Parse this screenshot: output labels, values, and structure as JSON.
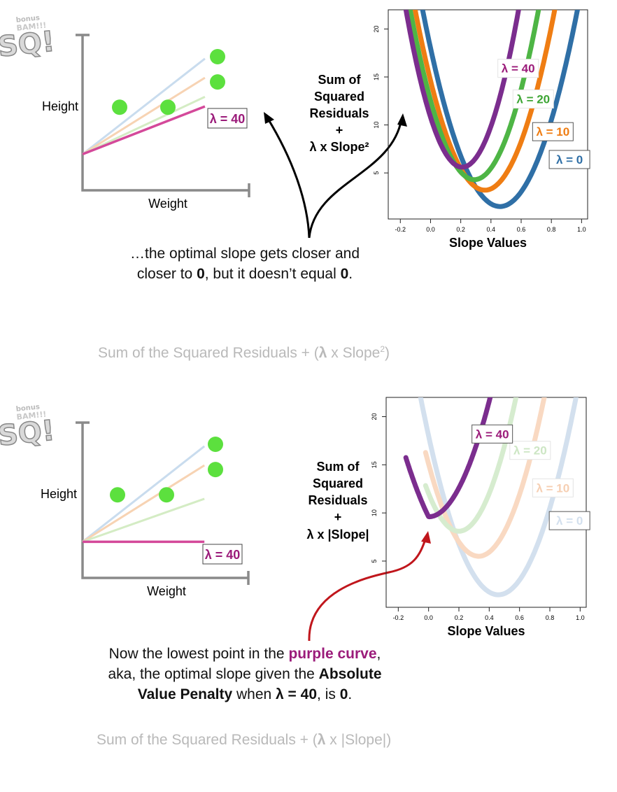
{
  "panels": [
    {
      "id": "top",
      "logo": {
        "top": "bonus",
        "mid": "BAM!!!",
        "big": "SQ!"
      },
      "scatter": {
        "ylabel": "Height",
        "xlabel": "Weight",
        "lambda_label": "λ = 40",
        "colors": {
          "points": "#5ce03e",
          "axes": "#8a8a8a",
          "lambda40": "#d4499a"
        }
      },
      "side_label_lines": [
        "Sum of",
        "Squared",
        "Residuals",
        "+",
        "λ x Slope²"
      ],
      "caption_lines": [
        [
          "…the optimal slope gets closer and"
        ],
        [
          "closer to ",
          "0",
          ", but it doesn’t equal ",
          "0",
          "."
        ]
      ],
      "footer": {
        "prefix": "Sum of the Squared Residuals + (",
        "lambda": "λ",
        "mid": " x Slope",
        "sup": "2",
        "suffix": ")"
      }
    },
    {
      "id": "bottom",
      "logo": {
        "top": "bonus",
        "mid": "BAM!!!",
        "big": "SQ!"
      },
      "scatter": {
        "ylabel": "Height",
        "xlabel": "Weight",
        "lambda_label": "λ = 40",
        "colors": {
          "points": "#5ce03e",
          "axes": "#8a8a8a",
          "lambda40": "#d4499a"
        }
      },
      "side_label_lines": [
        "Sum of",
        "Squared",
        "Residuals",
        "+",
        "λ x |Slope|"
      ],
      "caption_lines": [
        [
          "Now the lowest point in the ",
          "purple curve",
          ","
        ],
        [
          "aka, the optimal slope given the ",
          "Absolute"
        ],
        [
          "Value Penalty",
          " when ",
          "λ = 40",
          ", is ",
          "0",
          "."
        ]
      ],
      "footer": {
        "prefix": "Sum of the Squared Residuals + (",
        "lambda": "λ",
        "mid": " x |Slope|",
        "sup": "",
        "suffix": ")"
      }
    }
  ],
  "chart_data": [
    {
      "type": "scatter",
      "title": "",
      "xlabel": "Weight",
      "ylabel": "Height",
      "points": [
        {
          "x": 1,
          "y": 2.3
        },
        {
          "x": 2,
          "y": 2.3
        },
        {
          "x": 3,
          "y": 3.7
        },
        {
          "x": 3,
          "y": 3.0
        }
      ],
      "fit_lines": [
        {
          "name": "",
          "color": "#c9dcee",
          "intercept": 1,
          "slope": 1.0
        },
        {
          "name": "",
          "color": "#f7d3b3",
          "intercept": 1,
          "slope": 0.8
        },
        {
          "name": "",
          "color": "#d4ecc4",
          "intercept": 1,
          "slope": 0.6
        },
        {
          "name": "λ = 40",
          "color": "#d4499a",
          "intercept": 1,
          "slope": 0.5
        }
      ],
      "xlim": [
        0,
        3.6
      ],
      "ylim": [
        0,
        4.3
      ],
      "grid": false
    },
    {
      "type": "line",
      "title": "",
      "xlabel": "Slope Values",
      "ylabel": "",
      "xlim": [
        -0.28,
        1.04
      ],
      "ylim": [
        0.2,
        22
      ],
      "x_ticks": [
        -0.2,
        0.0,
        0.2,
        0.4,
        0.6,
        0.8,
        1.0
      ],
      "x_tick_labels": [
        "-0.2",
        "0.0",
        "0.2",
        "0.4",
        "0.6",
        "0.8",
        "1.0"
      ],
      "y_ticks": [
        5,
        10,
        15,
        20
      ],
      "y_tick_labels": [
        "5",
        "10",
        "15",
        "20"
      ],
      "grid": false,
      "series": [
        {
          "name": "λ = 0",
          "color": "#2f6fa6",
          "label_color": "#2f6fa6",
          "label_x": 0.92,
          "label_y": 6.4,
          "min_x": 0.46,
          "min_y": 1.5,
          "curv": 78,
          "kind": "sq",
          "x_start": -0.25,
          "x_end": 1.0
        },
        {
          "name": "λ = 10",
          "color": "#ef7d13",
          "label_color": "#ef7d13",
          "label_x": 0.81,
          "label_y": 9.3,
          "min_x": 0.36,
          "min_y": 3.2,
          "curv": 88,
          "kind": "sq",
          "x_start": -0.25,
          "x_end": 1.0
        },
        {
          "name": "λ = 20",
          "color": "#4eb545",
          "label_color": "#3da534",
          "label_x": 0.68,
          "label_y": 12.7,
          "min_x": 0.29,
          "min_y": 4.3,
          "curv": 98,
          "kind": "sq",
          "x_start": -0.25,
          "x_end": 1.0
        },
        {
          "name": "λ = 40",
          "color": "#7b2d8e",
          "label_color": "#9b1b7a",
          "label_x": 0.58,
          "label_y": 15.9,
          "min_x": 0.21,
          "min_y": 5.6,
          "curv": 118,
          "kind": "sq",
          "x_start": -0.25,
          "x_end": 1.0
        }
      ]
    },
    {
      "type": "scatter",
      "title": "",
      "xlabel": "Weight",
      "ylabel": "Height",
      "points": [
        {
          "x": 1,
          "y": 2.3
        },
        {
          "x": 2,
          "y": 2.3
        },
        {
          "x": 3,
          "y": 3.7
        },
        {
          "x": 3,
          "y": 3.0
        }
      ],
      "fit_lines": [
        {
          "name": "",
          "color": "#c9dcee",
          "intercept": 1,
          "slope": 1.0
        },
        {
          "name": "",
          "color": "#f7d3b3",
          "intercept": 1,
          "slope": 0.8
        },
        {
          "name": "",
          "color": "#d4ecc4",
          "intercept": 1,
          "slope": 0.45
        },
        {
          "name": "λ = 40",
          "color": "#d4499a",
          "intercept": 1,
          "slope": 0.0
        }
      ],
      "xlim": [
        0,
        3.6
      ],
      "ylim": [
        0,
        4.3
      ],
      "grid": false
    },
    {
      "type": "line",
      "title": "",
      "xlabel": "Slope Values",
      "ylabel": "",
      "xlim": [
        -0.28,
        1.04
      ],
      "ylim": [
        0.2,
        22
      ],
      "x_ticks": [
        -0.2,
        0.0,
        0.2,
        0.4,
        0.6,
        0.8,
        1.0
      ],
      "x_tick_labels": [
        "-0.2",
        "0.0",
        "0.2",
        "0.4",
        "0.6",
        "0.8",
        "1.0"
      ],
      "y_ticks": [
        5,
        10,
        15,
        20
      ],
      "y_tick_labels": [
        "5",
        "10",
        "15",
        "20"
      ],
      "grid": false,
      "series": [
        {
          "name": "λ = 0",
          "color": "#d3e0ee",
          "label_color": "#d3e0ee",
          "label_x": 0.93,
          "label_y": 9.2,
          "min_x": 0.46,
          "min_y": 1.5,
          "curv": 78,
          "kind": "sq",
          "x_start": -0.25,
          "x_end": 1.0
        },
        {
          "name": "λ = 10",
          "color": "#f9d9c2",
          "label_color": "#f6cfb3",
          "label_x": 0.82,
          "label_y": 12.6,
          "min_x": 0.33,
          "min_y": 5.5,
          "curv": 88,
          "kind": "sq",
          "x_start": -0.02,
          "x_end": 1.0
        },
        {
          "name": "λ = 20",
          "color": "#d6eccf",
          "label_color": "#cde6c4",
          "label_x": 0.67,
          "label_y": 16.5,
          "min_x": 0.2,
          "min_y": 8.1,
          "curv": 98,
          "kind": "sq",
          "x_start": -0.02,
          "x_end": 1.0
        },
        {
          "name": "λ = 40",
          "color": "#7b2d8e",
          "label_color": "#9b1b7a",
          "label_x": 0.42,
          "label_y": 18.2,
          "min_x": 0.0,
          "min_y": 9.6,
          "curv": 75,
          "kind": "abs",
          "x_start": -0.15,
          "x_end": 0.49
        }
      ]
    }
  ]
}
